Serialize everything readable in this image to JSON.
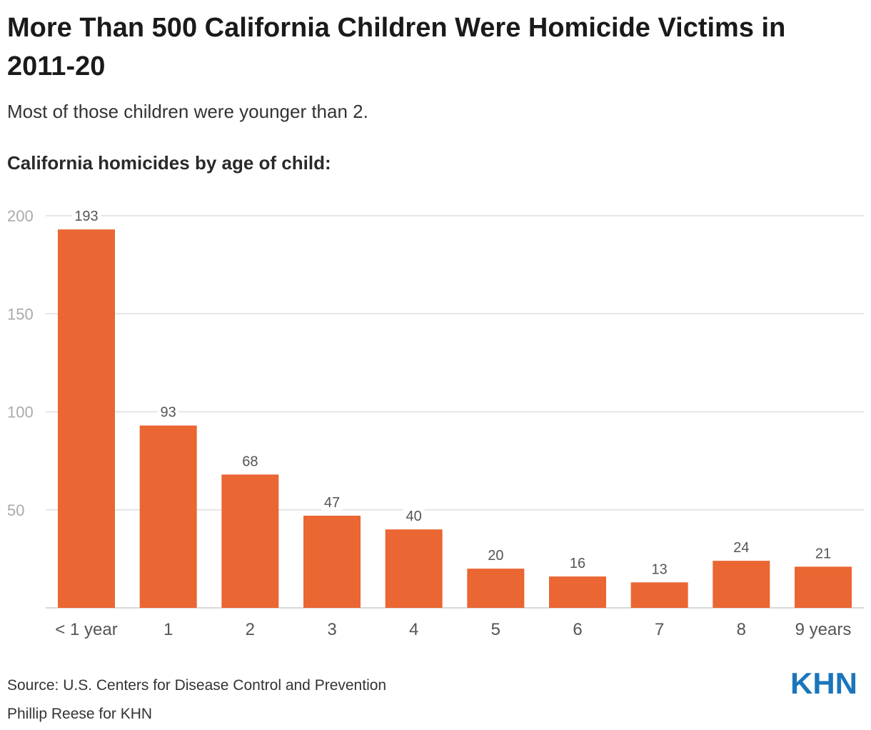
{
  "title": "More Than 500 California Children Were Homicide Victims in 2011-20",
  "subtitle": "Most of those children were younger than 2.",
  "chart_heading": "California homicides by age of child:",
  "chart_data": {
    "type": "bar",
    "categories": [
      "< 1 year",
      "1",
      "2",
      "3",
      "4",
      "5",
      "6",
      "7",
      "8",
      "9 years"
    ],
    "values": [
      193,
      93,
      68,
      47,
      40,
      20,
      16,
      13,
      24,
      21
    ],
    "ylim": [
      0,
      200
    ],
    "yticks": [
      50,
      100,
      150,
      200
    ],
    "grid": true,
    "xlabel": "",
    "ylabel": "",
    "bar_color": "#EA6632",
    "grid_color": "#DDDDDD",
    "tick_label_color": "#AAAAAA",
    "value_label_color": "#555555"
  },
  "footer": {
    "source": "Source: U.S. Centers for Disease Control and Prevention",
    "credit": "Phillip Reese for KHN"
  },
  "logo": {
    "text": "KHN",
    "color": "#1B75BB"
  }
}
